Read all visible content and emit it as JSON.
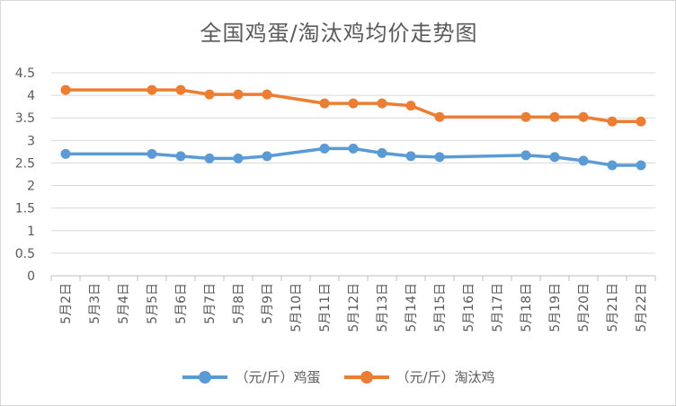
{
  "chart_data": {
    "type": "line",
    "title": "全国鸡蛋/淘汰鸡均价走势图",
    "categories": [
      "5月2日",
      "5月3日",
      "5月4日",
      "5月5日",
      "5月6日",
      "5月7日",
      "5月8日",
      "5月9日",
      "5月10日",
      "5月11日",
      "5月12日",
      "5月13日",
      "5月14日",
      "5月15日",
      "5月16日",
      "5月17日",
      "5月18日",
      "5月19日",
      "5月20日",
      "5月21日",
      "5月22日"
    ],
    "ylim": [
      0,
      4.5
    ],
    "yticks": [
      "0",
      "0.5",
      "1",
      "1.5",
      "2",
      "2.5",
      "3",
      "3.5",
      "4",
      "4.5"
    ],
    "series": [
      {
        "name": "（元/斤）鸡蛋",
        "color": "#5b9bd5",
        "values": [
          2.7,
          null,
          null,
          2.7,
          2.65,
          2.6,
          2.6,
          2.65,
          null,
          2.82,
          2.82,
          2.72,
          2.65,
          2.63,
          null,
          null,
          2.67,
          2.63,
          2.55,
          2.45,
          2.45
        ]
      },
      {
        "name": "（元/斤）淘汰鸡",
        "color": "#ed7d31",
        "values": [
          4.12,
          null,
          null,
          4.12,
          4.12,
          4.02,
          4.02,
          4.02,
          null,
          3.82,
          3.82,
          3.82,
          3.77,
          3.52,
          null,
          null,
          3.52,
          3.52,
          3.52,
          3.42,
          3.42
        ]
      }
    ],
    "grid": true,
    "legend": "bottom"
  }
}
